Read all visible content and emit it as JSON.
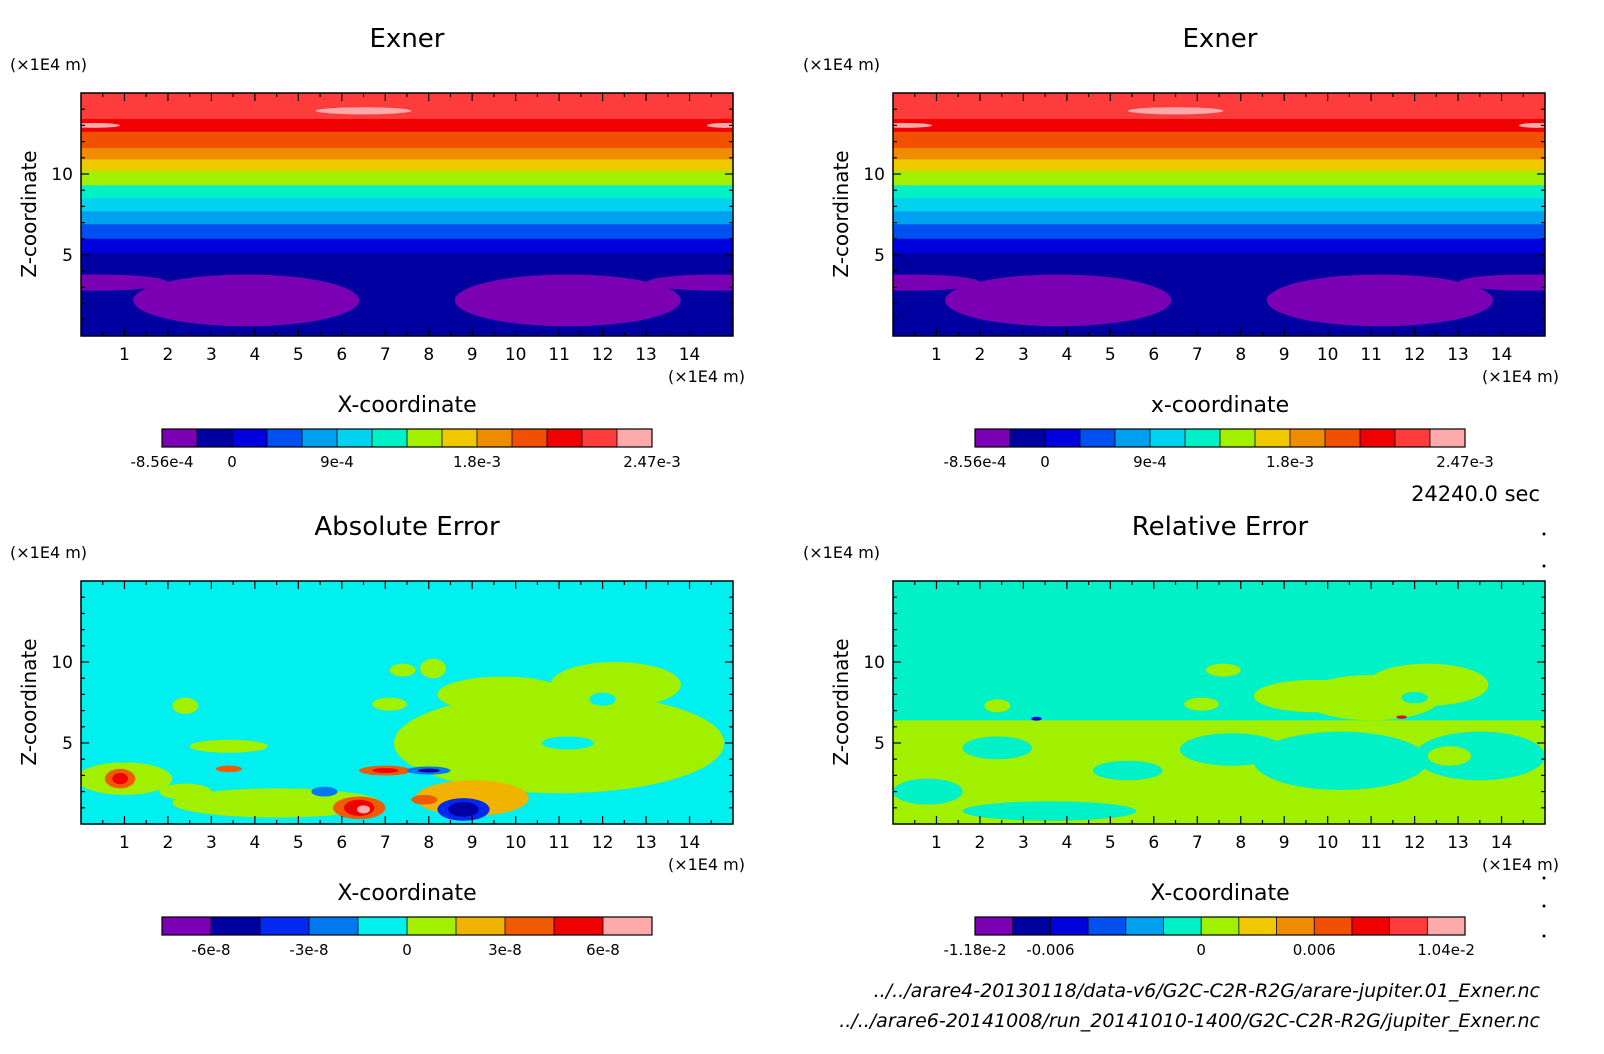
{
  "timestamp": "24240.0 sec",
  "file_paths": [
    "../../arare4-20130118/data-v6/G2C-C2R-R2G/arare-jupiter.01_Exner.nc",
    "../../arare6-20141008/run_20141010-1400/G2C-C2R-R2G/jupiter_Exner.nc"
  ],
  "chart_data": [
    {
      "type": "heatmap",
      "title": "Exner",
      "xlabel": "X-coordinate",
      "ylabel": "Z-coordinate",
      "x_unit": "(×1E4 m)",
      "y_unit": "(×1E4 m)",
      "xlim": [
        0,
        15
      ],
      "ylim": [
        0,
        15
      ],
      "x_ticks": [
        "1",
        "2",
        "3",
        "4",
        "5",
        "6",
        "7",
        "8",
        "9",
        "10",
        "11",
        "12",
        "13",
        "14"
      ],
      "y_ticks": [
        "5",
        "10"
      ],
      "legend": {
        "colors": [
          "#7b00b4",
          "#0000a0",
          "#0000dc",
          "#0050f0",
          "#00a0f0",
          "#00d2f0",
          "#00f0c8",
          "#a0f000",
          "#f0c800",
          "#f08c00",
          "#f05000",
          "#f00000",
          "#ff3c3c",
          "#ffaaaa"
        ],
        "labels": [
          "-8.56e-4",
          "0",
          "9e-4",
          "1.8e-3",
          "2.47e-3"
        ],
        "label_index": [
          0,
          2,
          5,
          9,
          14
        ]
      },
      "bands": [
        {
          "z0": 13.4,
          "z1": 15.0,
          "color": "#ff3c3c"
        },
        {
          "z0": 12.6,
          "z1": 13.4,
          "color": "#f00000"
        },
        {
          "z0": 11.6,
          "z1": 12.6,
          "color": "#f05000"
        },
        {
          "z0": 10.9,
          "z1": 11.6,
          "color": "#f08c00"
        },
        {
          "z0": 10.2,
          "z1": 10.9,
          "color": "#f0c800"
        },
        {
          "z0": 9.3,
          "z1": 10.2,
          "color": "#a0f000"
        },
        {
          "z0": 8.5,
          "z1": 9.3,
          "color": "#00f0c8"
        },
        {
          "z0": 7.7,
          "z1": 8.5,
          "color": "#00d2f0"
        },
        {
          "z0": 6.9,
          "z1": 7.7,
          "color": "#00a0f0"
        },
        {
          "z0": 6.0,
          "z1": 6.9,
          "color": "#0050f0"
        },
        {
          "z0": 5.1,
          "z1": 6.0,
          "color": "#0000dc"
        },
        {
          "z0": 3.6,
          "z1": 5.1,
          "color": "#0000a0"
        },
        {
          "z0": 0.0,
          "z1": 3.6,
          "color": "#0000a0"
        }
      ],
      "blobs": [
        {
          "x": 0.4,
          "z": 3.3,
          "rx": 1.6,
          "rz": 0.5,
          "color": "#7b00b4"
        },
        {
          "x": 3.8,
          "z": 2.2,
          "rx": 2.6,
          "rz": 1.6,
          "color": "#7b00b4"
        },
        {
          "x": 11.2,
          "z": 2.2,
          "rx": 2.6,
          "rz": 1.6,
          "color": "#7b00b4"
        },
        {
          "x": 14.6,
          "z": 3.3,
          "rx": 1.6,
          "rz": 0.5,
          "color": "#7b00b4"
        },
        {
          "x": 6.5,
          "z": 13.9,
          "rx": 1.1,
          "rz": 0.22,
          "color": "#ffaaaa"
        },
        {
          "x": 0.3,
          "z": 13.0,
          "rx": 0.6,
          "rz": 0.15,
          "color": "#ffaaaa"
        },
        {
          "x": 14.8,
          "z": 13.0,
          "rx": 0.4,
          "rz": 0.15,
          "color": "#ffaaaa"
        }
      ]
    },
    {
      "type": "heatmap",
      "title": "Exner",
      "xlabel": "x-coordinate",
      "ylabel": "Z-coordinate",
      "x_unit": "(×1E4 m)",
      "y_unit": "(×1E4 m)",
      "xlim": [
        0,
        15
      ],
      "ylim": [
        0,
        15
      ],
      "x_ticks": [
        "1",
        "2",
        "3",
        "4",
        "5",
        "6",
        "7",
        "8",
        "9",
        "10",
        "11",
        "12",
        "13",
        "14"
      ],
      "y_ticks": [
        "5",
        "10"
      ],
      "legend": {
        "colors": [
          "#7b00b4",
          "#0000a0",
          "#0000dc",
          "#0050f0",
          "#00a0f0",
          "#00d2f0",
          "#00f0c8",
          "#a0f000",
          "#f0c800",
          "#f08c00",
          "#f05000",
          "#f00000",
          "#ff3c3c",
          "#ffaaaa"
        ],
        "labels": [
          "-8.56e-4",
          "0",
          "9e-4",
          "1.8e-3",
          "2.47e-3"
        ],
        "label_index": [
          0,
          2,
          5,
          9,
          14
        ]
      },
      "bands": [
        {
          "z0": 13.4,
          "z1": 15.0,
          "color": "#ff3c3c"
        },
        {
          "z0": 12.6,
          "z1": 13.4,
          "color": "#f00000"
        },
        {
          "z0": 11.6,
          "z1": 12.6,
          "color": "#f05000"
        },
        {
          "z0": 10.9,
          "z1": 11.6,
          "color": "#f08c00"
        },
        {
          "z0": 10.2,
          "z1": 10.9,
          "color": "#f0c800"
        },
        {
          "z0": 9.3,
          "z1": 10.2,
          "color": "#a0f000"
        },
        {
          "z0": 8.5,
          "z1": 9.3,
          "color": "#00f0c8"
        },
        {
          "z0": 7.7,
          "z1": 8.5,
          "color": "#00d2f0"
        },
        {
          "z0": 6.9,
          "z1": 7.7,
          "color": "#00a0f0"
        },
        {
          "z0": 6.0,
          "z1": 6.9,
          "color": "#0050f0"
        },
        {
          "z0": 5.1,
          "z1": 6.0,
          "color": "#0000dc"
        },
        {
          "z0": 3.6,
          "z1": 5.1,
          "color": "#0000a0"
        },
        {
          "z0": 0.0,
          "z1": 3.6,
          "color": "#0000a0"
        }
      ],
      "blobs": [
        {
          "x": 0.4,
          "z": 3.3,
          "rx": 1.6,
          "rz": 0.5,
          "color": "#7b00b4"
        },
        {
          "x": 3.8,
          "z": 2.2,
          "rx": 2.6,
          "rz": 1.6,
          "color": "#7b00b4"
        },
        {
          "x": 11.2,
          "z": 2.2,
          "rx": 2.6,
          "rz": 1.6,
          "color": "#7b00b4"
        },
        {
          "x": 14.6,
          "z": 3.3,
          "rx": 1.6,
          "rz": 0.5,
          "color": "#7b00b4"
        },
        {
          "x": 6.5,
          "z": 13.9,
          "rx": 1.1,
          "rz": 0.22,
          "color": "#ffaaaa"
        },
        {
          "x": 0.3,
          "z": 13.0,
          "rx": 0.6,
          "rz": 0.15,
          "color": "#ffaaaa"
        },
        {
          "x": 14.8,
          "z": 13.0,
          "rx": 0.4,
          "rz": 0.15,
          "color": "#ffaaaa"
        }
      ]
    },
    {
      "type": "heatmap",
      "title": "Absolute Error",
      "xlabel": "X-coordinate",
      "ylabel": "Z-coordinate",
      "x_unit": "(×1E4 m)",
      "y_unit": "(×1E4 m)",
      "xlim": [
        0,
        15
      ],
      "ylim": [
        0,
        15
      ],
      "x_ticks": [
        "1",
        "2",
        "3",
        "4",
        "5",
        "6",
        "7",
        "8",
        "9",
        "10",
        "11",
        "12",
        "13",
        "14"
      ],
      "y_ticks": [
        "5",
        "10"
      ],
      "legend": {
        "colors": [
          "#7b00b4",
          "#0000a0",
          "#0028f0",
          "#0078f0",
          "#00f0f0",
          "#a0f000",
          "#f0b400",
          "#f05a00",
          "#f00000",
          "#ffaaaa"
        ],
        "labels": [
          "-6e-8",
          "-3e-8",
          "0",
          "3e-8",
          "6e-8"
        ],
        "label_index": [
          1,
          3,
          5,
          7,
          9
        ]
      },
      "bands": [
        {
          "z0": 0.0,
          "z1": 15.0,
          "color": "#00f0f0"
        }
      ],
      "blobs": [
        {
          "x": 11.0,
          "z": 5.0,
          "rx": 3.8,
          "rz": 3.1,
          "color": "#a0f000"
        },
        {
          "x": 12.3,
          "z": 8.6,
          "rx": 1.5,
          "rz": 1.4,
          "color": "#a0f000"
        },
        {
          "x": 9.7,
          "z": 8.0,
          "rx": 1.5,
          "rz": 1.1,
          "color": "#a0f000"
        },
        {
          "x": 4.5,
          "z": 1.3,
          "rx": 2.4,
          "rz": 0.9,
          "color": "#a0f000"
        },
        {
          "x": 1.0,
          "z": 2.8,
          "rx": 1.1,
          "rz": 1.0,
          "color": "#a0f000"
        },
        {
          "x": 3.4,
          "z": 4.8,
          "rx": 0.9,
          "rz": 0.4,
          "color": "#a0f000"
        },
        {
          "x": 2.4,
          "z": 2.0,
          "rx": 0.6,
          "rz": 0.5,
          "color": "#a0f000"
        },
        {
          "x": 2.4,
          "z": 7.3,
          "rx": 0.3,
          "rz": 0.5,
          "color": "#a0f000"
        },
        {
          "x": 7.1,
          "z": 7.4,
          "rx": 0.4,
          "rz": 0.4,
          "color": "#a0f000"
        },
        {
          "x": 7.4,
          "z": 9.5,
          "rx": 0.3,
          "rz": 0.4,
          "color": "#a0f000"
        },
        {
          "x": 8.1,
          "z": 9.6,
          "rx": 0.3,
          "rz": 0.6,
          "color": "#a0f000"
        },
        {
          "x": 12.0,
          "z": 7.7,
          "rx": 0.3,
          "rz": 0.4,
          "color": "#00f0f0"
        },
        {
          "x": 11.2,
          "z": 5.0,
          "rx": 0.6,
          "rz": 0.4,
          "color": "#00f0f0"
        },
        {
          "x": 9.0,
          "z": 1.6,
          "rx": 1.3,
          "rz": 1.1,
          "color": "#f0b400"
        },
        {
          "x": 6.4,
          "z": 1.0,
          "rx": 0.6,
          "rz": 0.7,
          "color": "#f05a00"
        },
        {
          "x": 6.4,
          "z": 1.0,
          "rx": 0.35,
          "rz": 0.5,
          "color": "#f00000"
        },
        {
          "x": 6.5,
          "z": 0.9,
          "rx": 0.15,
          "rz": 0.25,
          "color": "#ffaaaa"
        },
        {
          "x": 8.8,
          "z": 0.9,
          "rx": 0.6,
          "rz": 0.7,
          "color": "#0028f0"
        },
        {
          "x": 8.8,
          "z": 0.9,
          "rx": 0.35,
          "rz": 0.45,
          "color": "#0000a0"
        },
        {
          "x": 0.9,
          "z": 2.8,
          "rx": 0.35,
          "rz": 0.6,
          "color": "#f05a00"
        },
        {
          "x": 0.9,
          "z": 2.8,
          "rx": 0.18,
          "rz": 0.35,
          "color": "#f00000"
        },
        {
          "x": 7.0,
          "z": 3.3,
          "rx": 0.6,
          "rz": 0.3,
          "color": "#f05a00"
        },
        {
          "x": 7.0,
          "z": 3.3,
          "rx": 0.3,
          "rz": 0.15,
          "color": "#f00000"
        },
        {
          "x": 8.0,
          "z": 3.3,
          "rx": 0.5,
          "rz": 0.25,
          "color": "#0078f0"
        },
        {
          "x": 8.0,
          "z": 3.3,
          "rx": 0.25,
          "rz": 0.12,
          "color": "#0000a0"
        },
        {
          "x": 5.6,
          "z": 2.0,
          "rx": 0.3,
          "rz": 0.3,
          "color": "#0078f0"
        },
        {
          "x": 7.9,
          "z": 1.5,
          "rx": 0.3,
          "rz": 0.3,
          "color": "#f05a00"
        },
        {
          "x": 3.4,
          "z": 3.4,
          "rx": 0.3,
          "rz": 0.2,
          "color": "#f05a00"
        }
      ]
    },
    {
      "type": "heatmap",
      "title": "Relative Error",
      "xlabel": "X-coordinate",
      "ylabel": "Z-coordinate",
      "x_unit": "(×1E4 m)",
      "y_unit": "(×1E4 m)",
      "xlim": [
        0,
        15
      ],
      "ylim": [
        0,
        15
      ],
      "x_ticks": [
        "1",
        "2",
        "3",
        "4",
        "5",
        "6",
        "7",
        "8",
        "9",
        "10",
        "11",
        "12",
        "13",
        "14"
      ],
      "y_ticks": [
        "5",
        "10"
      ],
      "legend": {
        "colors": [
          "#7b00b4",
          "#0000a0",
          "#0000dc",
          "#0050f0",
          "#00a0f0",
          "#00f0c8",
          "#a0f000",
          "#f0c800",
          "#f08c00",
          "#f05000",
          "#f00000",
          "#ff3c3c",
          "#ffaaaa"
        ],
        "labels": [
          "-1.18e-2",
          "-0.006",
          "0",
          "0.006",
          "1.04e-2"
        ],
        "label_index": [
          0,
          2,
          6,
          9,
          12.5
        ]
      },
      "bands": [
        {
          "z0": 6.4,
          "z1": 15.0,
          "color": "#00f0c8"
        },
        {
          "z0": 0.0,
          "z1": 6.4,
          "color": "#a0f000"
        }
      ],
      "blobs": [
        {
          "x": 11.0,
          "z": 7.8,
          "rx": 1.6,
          "rz": 1.4,
          "color": "#a0f000"
        },
        {
          "x": 12.3,
          "z": 8.6,
          "rx": 1.4,
          "rz": 1.3,
          "color": "#a0f000"
        },
        {
          "x": 9.7,
          "z": 7.9,
          "rx": 1.4,
          "rz": 1.0,
          "color": "#a0f000"
        },
        {
          "x": 7.1,
          "z": 7.4,
          "rx": 0.4,
          "rz": 0.4,
          "color": "#a0f000"
        },
        {
          "x": 2.4,
          "z": 7.3,
          "rx": 0.3,
          "rz": 0.4,
          "color": "#a0f000"
        },
        {
          "x": 7.6,
          "z": 9.5,
          "rx": 0.4,
          "rz": 0.4,
          "color": "#a0f000"
        },
        {
          "x": 12.0,
          "z": 7.8,
          "rx": 0.3,
          "rz": 0.35,
          "color": "#00f0c8"
        },
        {
          "x": 10.3,
          "z": 3.9,
          "rx": 2.0,
          "rz": 1.8,
          "color": "#00f0c8"
        },
        {
          "x": 13.5,
          "z": 4.2,
          "rx": 1.5,
          "rz": 1.5,
          "color": "#00f0c8"
        },
        {
          "x": 7.8,
          "z": 4.6,
          "rx": 1.2,
          "rz": 1.0,
          "color": "#00f0c8"
        },
        {
          "x": 0.8,
          "z": 2.0,
          "rx": 0.8,
          "rz": 0.8,
          "color": "#00f0c8"
        },
        {
          "x": 3.6,
          "z": 0.8,
          "rx": 2.0,
          "rz": 0.6,
          "color": "#00f0c8"
        },
        {
          "x": 2.4,
          "z": 4.7,
          "rx": 0.8,
          "rz": 0.7,
          "color": "#00f0c8"
        },
        {
          "x": 5.4,
          "z": 3.3,
          "rx": 0.8,
          "rz": 0.6,
          "color": "#00f0c8"
        },
        {
          "x": 11.4,
          "z": 1.0,
          "rx": 0.8,
          "rz": 0.6,
          "color": "#a0f000"
        },
        {
          "x": 12.8,
          "z": 4.2,
          "rx": 0.5,
          "rz": 0.6,
          "color": "#a0f000"
        },
        {
          "x": 3.3,
          "z": 6.5,
          "rx": 0.12,
          "rz": 0.12,
          "color": "#0000dc"
        },
        {
          "x": 11.7,
          "z": 6.6,
          "rx": 0.12,
          "rz": 0.1,
          "color": "#f00000"
        }
      ]
    }
  ]
}
